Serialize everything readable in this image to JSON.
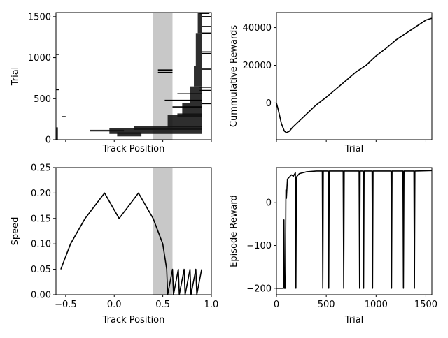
{
  "chart_data": [
    {
      "id": "trial-vs-track",
      "type": "scatter",
      "xlabel": "Track Position",
      "ylabel": "Trial",
      "xlim": [
        -0.6,
        1.0
      ],
      "ylim": [
        0,
        1550
      ],
      "yticks": [
        0,
        500,
        1000,
        1500
      ],
      "shaded_region": [
        0.4,
        0.6
      ],
      "bands": [
        {
          "y0": 0,
          "y1": 150,
          "x0": -0.6,
          "x1": -0.58
        },
        {
          "y0": 40,
          "y1": 90,
          "x0": 0.03,
          "x1": 0.28
        },
        {
          "y0": 70,
          "y1": 140,
          "x0": -0.05,
          "x1": 0.9
        },
        {
          "y0": 100,
          "y1": 120,
          "x0": -0.25,
          "x1": 0.1
        },
        {
          "y0": 120,
          "y1": 170,
          "x0": 0.2,
          "x1": 0.9
        },
        {
          "y0": 150,
          "y1": 300,
          "x0": 0.55,
          "x1": 0.9
        },
        {
          "y0": 280,
          "y1": 320,
          "x0": 0.65,
          "x1": 0.9
        },
        {
          "y0": 300,
          "y1": 450,
          "x0": 0.7,
          "x1": 0.9
        },
        {
          "y0": 450,
          "y1": 650,
          "x0": 0.78,
          "x1": 0.9
        },
        {
          "y0": 650,
          "y1": 900,
          "x0": 0.82,
          "x1": 0.9
        },
        {
          "y0": 900,
          "y1": 1300,
          "x0": 0.84,
          "x1": 0.9
        },
        {
          "y0": 1300,
          "y1": 1550,
          "x0": 0.86,
          "x1": 0.9
        }
      ],
      "segments": [
        {
          "y": 1040,
          "x0": -0.6,
          "x1": -0.57
        },
        {
          "y": 610,
          "x0": -0.6,
          "x1": -0.57
        },
        {
          "y": 280,
          "x0": -0.54,
          "x1": -0.5
        },
        {
          "y": 850,
          "x0": 0.45,
          "x1": 0.6
        },
        {
          "y": 820,
          "x0": 0.45,
          "x1": 0.6
        },
        {
          "y": 480,
          "x0": 0.52,
          "x1": 0.9
        },
        {
          "y": 400,
          "x0": 0.6,
          "x1": 0.9
        },
        {
          "y": 560,
          "x0": 0.65,
          "x1": 0.9
        },
        {
          "y": 1050,
          "x0": 0.9,
          "x1": 1.0
        },
        {
          "y": 1500,
          "x0": 0.9,
          "x1": 1.0
        },
        {
          "y": 1380,
          "x0": 0.9,
          "x1": 1.0
        },
        {
          "y": 1300,
          "x0": 0.9,
          "x1": 1.0
        },
        {
          "y": 1070,
          "x0": 0.9,
          "x1": 1.0
        },
        {
          "y": 860,
          "x0": 0.9,
          "x1": 1.0
        },
        {
          "y": 600,
          "x0": 0.88,
          "x1": 1.0
        },
        {
          "y": 440,
          "x0": 0.9,
          "x1": 1.0
        },
        {
          "y": 640,
          "x0": 0.88,
          "x1": 1.0
        },
        {
          "y": 1540,
          "x0": 0.88,
          "x1": 0.98
        }
      ]
    },
    {
      "id": "cumulative-rewards",
      "type": "line",
      "xlabel": "Trial",
      "ylabel": "Cummulative Rewards",
      "xlim": [
        0,
        1560
      ],
      "ylim": [
        -19500,
        48000
      ],
      "yticks": [
        0,
        20000,
        40000
      ],
      "x": [
        0,
        20,
        50,
        80,
        100,
        130,
        160,
        200,
        300,
        400,
        500,
        600,
        700,
        800,
        900,
        1000,
        1100,
        1200,
        1300,
        1400,
        1500,
        1560
      ],
      "y": [
        0,
        -4000,
        -11000,
        -15000,
        -15800,
        -15000,
        -13000,
        -11000,
        -6000,
        -1000,
        3000,
        7500,
        12000,
        16500,
        20000,
        25000,
        29000,
        33500,
        37000,
        40500,
        44000,
        45000
      ]
    },
    {
      "id": "speed-vs-track",
      "type": "line",
      "xlabel": "Track Position",
      "ylabel": "Speed",
      "xlim": [
        -0.6,
        1.0
      ],
      "ylim": [
        0,
        0.25
      ],
      "xticks": [
        -0.5,
        0.0,
        0.5,
        1.0
      ],
      "xticklabels": [
        "−0.5",
        "0.0",
        "0.5",
        "1.0"
      ],
      "yticks": [
        0.0,
        0.05,
        0.1,
        0.15,
        0.2,
        0.25
      ],
      "yticklabels": [
        "0.00",
        "0.05",
        "0.10",
        "0.15",
        "0.20",
        "0.25"
      ],
      "shaded_region": [
        0.4,
        0.6
      ],
      "x": [
        -0.55,
        -0.45,
        -0.3,
        -0.1,
        0.05,
        0.25,
        0.4,
        0.5,
        0.54,
        0.55,
        0.6,
        0.61,
        0.66,
        0.67,
        0.72,
        0.73,
        0.78,
        0.79,
        0.84,
        0.85,
        0.9
      ],
      "y": [
        0.05,
        0.1,
        0.15,
        0.2,
        0.15,
        0.2,
        0.15,
        0.1,
        0.05,
        0.0,
        0.05,
        0.0,
        0.05,
        0.0,
        0.05,
        0.0,
        0.05,
        0.0,
        0.05,
        0.0,
        0.05
      ]
    },
    {
      "id": "episode-reward",
      "type": "line",
      "xlabel": "Trial",
      "ylabel": "Episode Reward",
      "xlim": [
        0,
        1560
      ],
      "ylim": [
        -215,
        82
      ],
      "xticks": [
        0,
        500,
        1000,
        1500
      ],
      "yticks": [
        -200,
        -100,
        0
      ],
      "yticklabels": [
        "−200",
        "−100",
        "0"
      ],
      "x": [
        0,
        70,
        75,
        80,
        90,
        95,
        100,
        110,
        130,
        150,
        170,
        190,
        195,
        200,
        230,
        300,
        400,
        460,
        465,
        470,
        480,
        520,
        525,
        530,
        540,
        670,
        675,
        680,
        690,
        820,
        830,
        835,
        840,
        860,
        870,
        875,
        880,
        900,
        960,
        965,
        970,
        980,
        1150,
        1155,
        1160,
        1170,
        1270,
        1275,
        1280,
        1290,
        1380,
        1385,
        1390,
        1400,
        1560
      ],
      "y": [
        -200,
        -200,
        -40,
        -200,
        -200,
        30,
        10,
        55,
        60,
        65,
        62,
        70,
        -200,
        60,
        68,
        72,
        74,
        74,
        -200,
        74,
        74,
        74,
        -200,
        74,
        74,
        74,
        -200,
        74,
        74,
        74,
        74,
        -200,
        74,
        74,
        74,
        -200,
        74,
        74,
        74,
        -200,
        74,
        74,
        74,
        -200,
        74,
        74,
        74,
        -200,
        74,
        74,
        74,
        -200,
        74,
        74,
        75
      ]
    }
  ]
}
